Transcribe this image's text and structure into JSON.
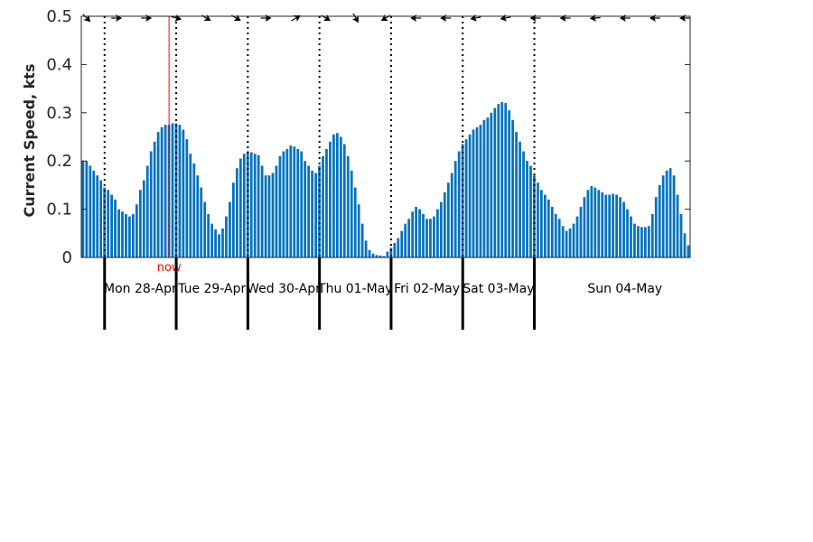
{
  "chart_data": {
    "type": "bar",
    "ylabel": "Current Speed, kts",
    "ylim": [
      0,
      0.5
    ],
    "yticks": [
      0,
      0.1,
      0.2,
      0.3,
      0.4,
      0.5
    ],
    "ytick_labels": [
      "0",
      "0.1",
      "0.2",
      "0.3",
      "0.4",
      "0.5"
    ],
    "grid": false,
    "bar_color": "#0072bd",
    "now_color": "#ff0000",
    "now_label": "now",
    "now_index": 24,
    "day_start_indices": [
      6,
      26,
      46,
      66,
      86,
      106,
      126
    ],
    "day_labels": [
      "Mon 28-Apr",
      "Tue 29-Apr",
      "Wed 30-Apr",
      "Thu 01-May",
      "Fri 02-May",
      "Sat 03-May",
      "Sun 04-May"
    ],
    "values": [
      0.2,
      0.2,
      0.19,
      0.18,
      0.17,
      0.16,
      0.145,
      0.14,
      0.13,
      0.12,
      0.1,
      0.095,
      0.09,
      0.085,
      0.09,
      0.11,
      0.14,
      0.16,
      0.19,
      0.22,
      0.24,
      0.26,
      0.27,
      0.275,
      0.275,
      0.278,
      0.278,
      0.275,
      0.265,
      0.245,
      0.215,
      0.195,
      0.17,
      0.145,
      0.115,
      0.09,
      0.07,
      0.058,
      0.048,
      0.06,
      0.085,
      0.115,
      0.155,
      0.185,
      0.205,
      0.215,
      0.22,
      0.218,
      0.215,
      0.212,
      0.19,
      0.17,
      0.17,
      0.175,
      0.19,
      0.21,
      0.22,
      0.225,
      0.232,
      0.23,
      0.225,
      0.22,
      0.2,
      0.19,
      0.18,
      0.175,
      0.19,
      0.21,
      0.225,
      0.24,
      0.255,
      0.258,
      0.25,
      0.235,
      0.21,
      0.18,
      0.145,
      0.11,
      0.07,
      0.035,
      0.015,
      0.008,
      0.005,
      0.004,
      0.003,
      0.012,
      0.02,
      0.03,
      0.04,
      0.055,
      0.07,
      0.08,
      0.095,
      0.105,
      0.1,
      0.09,
      0.08,
      0.08,
      0.085,
      0.1,
      0.115,
      0.135,
      0.155,
      0.175,
      0.2,
      0.22,
      0.235,
      0.245,
      0.255,
      0.265,
      0.27,
      0.275,
      0.285,
      0.29,
      0.3,
      0.31,
      0.318,
      0.322,
      0.32,
      0.305,
      0.285,
      0.26,
      0.24,
      0.22,
      0.2,
      0.19,
      0.17,
      0.155,
      0.14,
      0.13,
      0.12,
      0.105,
      0.09,
      0.08,
      0.065,
      0.055,
      0.06,
      0.07,
      0.085,
      0.105,
      0.125,
      0.14,
      0.148,
      0.145,
      0.14,
      0.135,
      0.13,
      0.13,
      0.132,
      0.13,
      0.125,
      0.115,
      0.1,
      0.085,
      0.07,
      0.065,
      0.063,
      0.063,
      0.065,
      0.09,
      0.125,
      0.15,
      0.17,
      0.18,
      0.185,
      0.17,
      0.13,
      0.09,
      0.05,
      0.025
    ],
    "direction_angles": [
      45,
      0,
      0,
      15,
      30,
      30,
      0,
      -30,
      30,
      60,
      150,
      180,
      180,
      170,
      170,
      180,
      180,
      175,
      180,
      180,
      180
    ]
  }
}
